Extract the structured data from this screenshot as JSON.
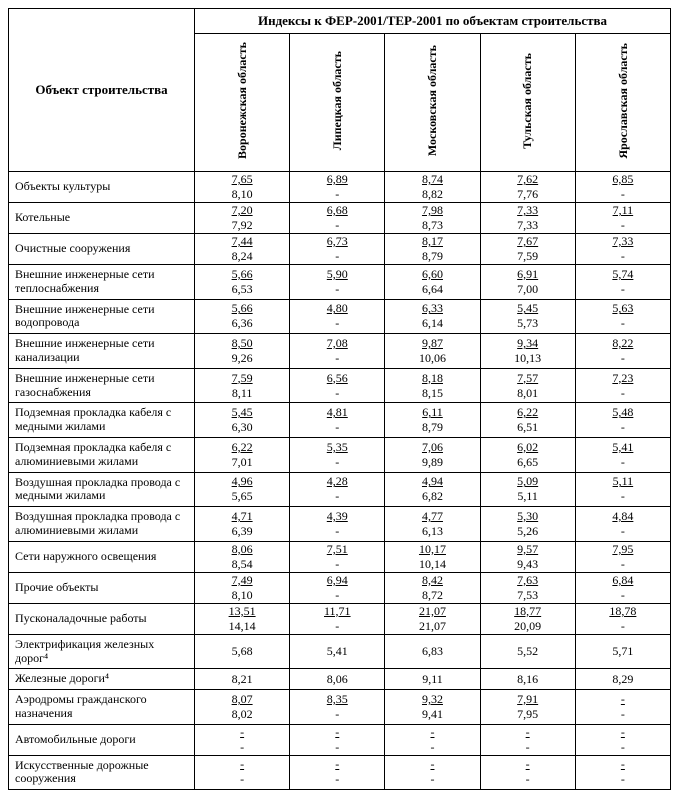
{
  "headerObject": "Объект строительства",
  "headerIndex": "Индексы к ФЕР-2001/ТЕР-2001 по объектам строительства",
  "regions": [
    "Воронежская область",
    "Липецкая область",
    "Московская область",
    "Тульская область",
    "Ярославская область"
  ],
  "rows": [
    {
      "label": "Объекты культуры",
      "v": [
        [
          "7,65",
          "8,10"
        ],
        [
          "6,89",
          "-"
        ],
        [
          "8,74",
          "8,82"
        ],
        [
          "7,62",
          "7,76"
        ],
        [
          "6,85",
          "-"
        ]
      ]
    },
    {
      "label": "Котельные",
      "v": [
        [
          "7,20",
          "7,92"
        ],
        [
          "6,68",
          "-"
        ],
        [
          "7,98",
          "8,73"
        ],
        [
          "7,33",
          "7,33"
        ],
        [
          "7,11",
          "-"
        ]
      ]
    },
    {
      "label": "Очистные сооружения",
      "v": [
        [
          "7,44",
          "8,24"
        ],
        [
          "6,73",
          "-"
        ],
        [
          "8,17",
          "8,79"
        ],
        [
          "7,67",
          "7,59"
        ],
        [
          "7,33",
          "-"
        ]
      ]
    },
    {
      "label": "Внешние инженерные сети теплоснабжения",
      "v": [
        [
          "5,66",
          "6,53"
        ],
        [
          "5,90",
          "-"
        ],
        [
          "6,60",
          "6,64"
        ],
        [
          "6,91",
          "7,00"
        ],
        [
          "5,74",
          "-"
        ]
      ]
    },
    {
      "label": "Внешние инженерные сети водопровода",
      "v": [
        [
          "5,66",
          "6,36"
        ],
        [
          "4,80",
          "-"
        ],
        [
          "6,33",
          "6,14"
        ],
        [
          "5,45",
          "5,73"
        ],
        [
          "5,63",
          "-"
        ]
      ]
    },
    {
      "label": "Внешние инженерные сети канализации",
      "v": [
        [
          "8,50",
          "9,26"
        ],
        [
          "7,08",
          "-"
        ],
        [
          "9,87",
          "10,06"
        ],
        [
          "9,34",
          "10,13"
        ],
        [
          "8,22",
          "-"
        ]
      ]
    },
    {
      "label": "Внешние инженерные сети газоснабжения",
      "v": [
        [
          "7,59",
          "8,11"
        ],
        [
          "6,56",
          "-"
        ],
        [
          "8,18",
          "8,15"
        ],
        [
          "7,57",
          "8,01"
        ],
        [
          "7,23",
          "-"
        ]
      ]
    },
    {
      "label": "Подземная прокладка кабеля с медными жилами",
      "v": [
        [
          "5,45",
          "6,30"
        ],
        [
          "4,81",
          "-"
        ],
        [
          "6,11",
          "8,79"
        ],
        [
          "6,22",
          "6,51"
        ],
        [
          "5,48",
          "-"
        ]
      ]
    },
    {
      "label": "Подземная прокладка кабеля с алюминиевыми жилами",
      "v": [
        [
          "6,22",
          "7,01"
        ],
        [
          "5,35",
          "-"
        ],
        [
          "7,06",
          "9,89"
        ],
        [
          "6,02",
          "6,65"
        ],
        [
          "5,41",
          "-"
        ]
      ]
    },
    {
      "label": "Воздушная прокладка провода с медными жилами",
      "v": [
        [
          "4,96",
          "5,65"
        ],
        [
          "4,28",
          "-"
        ],
        [
          "4,94",
          "6,82"
        ],
        [
          "5,09",
          "5,11"
        ],
        [
          "5,11",
          "-"
        ]
      ]
    },
    {
      "label": "Воздушная прокладка провода с алюминиевыми жилами",
      "v": [
        [
          "4,71",
          "6,39"
        ],
        [
          "4,39",
          "-"
        ],
        [
          "4,77",
          "6,13"
        ],
        [
          "5,30",
          "5,26"
        ],
        [
          "4,84",
          "-"
        ]
      ]
    },
    {
      "label": "Сети наружного освещения",
      "v": [
        [
          "8,06",
          "8,54"
        ],
        [
          "7,51",
          "-"
        ],
        [
          "10,17",
          "10,14"
        ],
        [
          "9,57",
          "9,43"
        ],
        [
          "7,95",
          "-"
        ]
      ]
    },
    {
      "label": "Прочие объекты",
      "v": [
        [
          "7,49",
          "8,10"
        ],
        [
          "6,94",
          "-"
        ],
        [
          "8,42",
          "8,72"
        ],
        [
          "7,63",
          "7,53"
        ],
        [
          "6,84",
          "-"
        ]
      ]
    },
    {
      "label": "Пусконаладочные работы",
      "v": [
        [
          "13,51",
          "14,14"
        ],
        [
          "11,71",
          "-"
        ],
        [
          "21,07",
          "21,07"
        ],
        [
          "18,77",
          "20,09"
        ],
        [
          "18,78",
          "-"
        ]
      ]
    },
    {
      "label": "Электрификация железных дорог⁴",
      "single": true,
      "v": [
        "5,68",
        "5,41",
        "6,83",
        "5,52",
        "5,71"
      ]
    },
    {
      "label": "Железные дороги⁴",
      "single": true,
      "v": [
        "8,21",
        "8,06",
        "9,11",
        "8,16",
        "8,29"
      ]
    },
    {
      "label": "Аэродромы гражданского назначения",
      "v": [
        [
          "8,07",
          "8,02"
        ],
        [
          "8,35",
          "-"
        ],
        [
          "9,32",
          "9,41"
        ],
        [
          "7,91",
          "7,95"
        ],
        [
          "-",
          "-"
        ]
      ]
    },
    {
      "label": "Автомобильные дороги",
      "v": [
        [
          "-",
          "-"
        ],
        [
          "-",
          "-"
        ],
        [
          "-",
          "-"
        ],
        [
          "-",
          "-"
        ],
        [
          "-",
          "-"
        ]
      ]
    },
    {
      "label": "Искусственные дорожные сооружения",
      "v": [
        [
          "-",
          "-"
        ],
        [
          "-",
          "-"
        ],
        [
          "-",
          "-"
        ],
        [
          "-",
          "-"
        ],
        [
          "-",
          "-"
        ]
      ]
    }
  ]
}
